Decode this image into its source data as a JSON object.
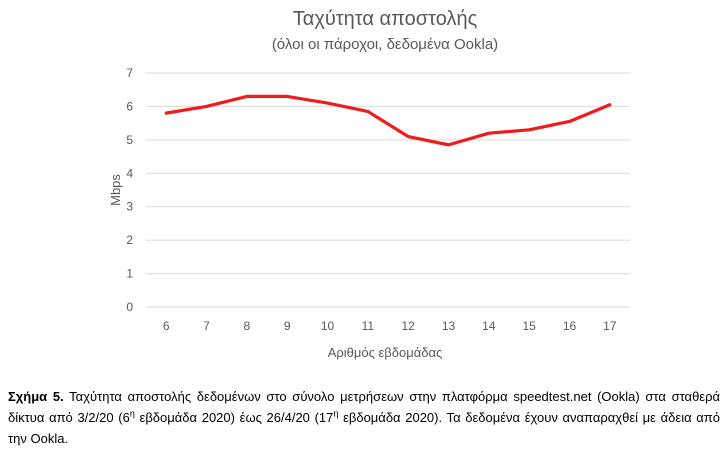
{
  "chart_data": {
    "type": "line",
    "title": "Ταχύτητα αποστολής",
    "subtitle": "(όλοι οι πάροχοι, δεδομένα Ookla)",
    "xlabel": "Αριθμός εβδομάδας",
    "ylabel": "Mbps",
    "x": [
      "6",
      "7",
      "8",
      "9",
      "10",
      "11",
      "12",
      "13",
      "14",
      "15",
      "16",
      "17"
    ],
    "values": [
      5.8,
      6.0,
      6.3,
      6.3,
      6.1,
      5.85,
      5.1,
      4.85,
      5.2,
      5.3,
      5.55,
      6.05
    ],
    "ylim": [
      0,
      7
    ],
    "yticks": [
      "0",
      "1",
      "2",
      "3",
      "4",
      "5",
      "6",
      "7"
    ],
    "grid": true,
    "color": "#ee1c1c"
  },
  "caption": {
    "label": "Σχήμα 5.",
    "part1": " Ταχύτητα αποστολής δεδομένων στο σύνολο μετρήσεων στην πλατφόρμα speedtest.net (Ookla) στα σταθερά δίκτυα από 3/2/20 (6",
    "sup1": "η",
    "part2": " εβδομάδα 2020) έως 26/4/20 (17",
    "sup2": "η",
    "part3": " εβδομάδα 2020). Τα δεδομένα έχουν αναπαραχθεί με άδεια από την Ookla."
  }
}
